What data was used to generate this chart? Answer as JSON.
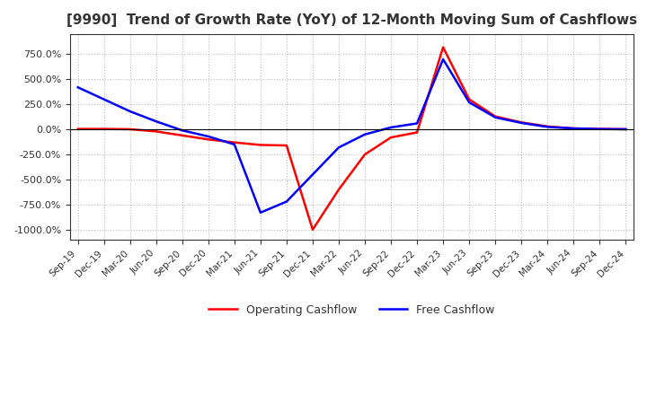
{
  "title": "[9990]  Trend of Growth Rate (YoY) of 12-Month Moving Sum of Cashflows",
  "title_fontsize": 11,
  "ylim": [
    -1100,
    950
  ],
  "yticks": [
    750,
    500,
    250,
    0,
    -250,
    -500,
    -750,
    -1000
  ],
  "background_color": "#ffffff",
  "grid_color": "#aaaaaa",
  "operating_color": "#ff0000",
  "free_color": "#0000ff",
  "x_labels": [
    "Sep-19",
    "Dec-19",
    "Mar-20",
    "Jun-20",
    "Sep-20",
    "Dec-20",
    "Mar-21",
    "Jun-21",
    "Sep-21",
    "Dec-21",
    "Mar-22",
    "Jun-22",
    "Sep-22",
    "Dec-22",
    "Mar-23",
    "Jun-23",
    "Sep-23",
    "Dec-23",
    "Mar-24",
    "Jun-24",
    "Sep-24",
    "Dec-24"
  ],
  "operating_cashflow": [
    5,
    5,
    2,
    -20,
    -60,
    -100,
    -130,
    -155,
    -160,
    -1000,
    -600,
    -250,
    -80,
    -30,
    820,
    300,
    130,
    70,
    30,
    10,
    5,
    2
  ],
  "free_cashflow": [
    420,
    300,
    180,
    80,
    -10,
    -70,
    -150,
    -830,
    -720,
    -450,
    -180,
    -50,
    20,
    60,
    700,
    270,
    120,
    65,
    25,
    10,
    4,
    2
  ]
}
